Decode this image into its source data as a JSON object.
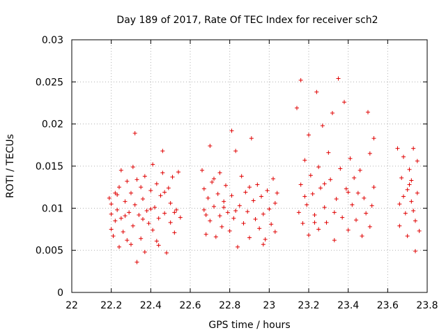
{
  "chart_data": {
    "type": "scatter",
    "title": "Day 189 of 2017, Rate Of TEC Index for receiver sch2",
    "xlabel": "GPS time / hours",
    "ylabel": "ROTI / TECUs",
    "xlim": [
      22,
      23.8
    ],
    "ylim": [
      0,
      0.03
    ],
    "x_ticks": [
      "22",
      "22.2",
      "22.4",
      "22.6",
      "22.8",
      "23",
      "23.2",
      "23.4",
      "23.6",
      "23.8"
    ],
    "y_ticks": [
      "0",
      "0.005",
      "0.01",
      "0.015",
      "0.02",
      "0.025",
      "0.03"
    ],
    "grid": true,
    "marker": "plus",
    "color": "#e00000",
    "points": [
      [
        22.19,
        0.0112
      ],
      [
        22.2,
        0.0105
      ],
      [
        22.2,
        0.0093
      ],
      [
        22.21,
        0.0067
      ],
      [
        22.22,
        0.0085
      ],
      [
        22.22,
        0.0118
      ],
      [
        22.23,
        0.0098
      ],
      [
        22.24,
        0.0054
      ],
      [
        22.24,
        0.0125
      ],
      [
        22.25,
        0.0145
      ],
      [
        22.25,
        0.0088
      ],
      [
        22.26,
        0.0072
      ],
      [
        22.27,
        0.0108
      ],
      [
        22.28,
        0.0132
      ],
      [
        22.28,
        0.0062
      ],
      [
        22.29,
        0.0095
      ],
      [
        22.3,
        0.0118
      ],
      [
        22.31,
        0.0149
      ],
      [
        22.31,
        0.0079
      ],
      [
        22.32,
        0.0104
      ],
      [
        22.32,
        0.0189
      ],
      [
        22.33,
        0.0036
      ],
      [
        22.34,
        0.0092
      ],
      [
        22.35,
        0.0125
      ],
      [
        22.35,
        0.0064
      ],
      [
        22.36,
        0.0111
      ],
      [
        22.37,
        0.0138
      ],
      [
        22.37,
        0.0048
      ],
      [
        22.38,
        0.0097
      ],
      [
        22.39,
        0.0082
      ],
      [
        22.4,
        0.0121
      ],
      [
        22.41,
        0.0152
      ],
      [
        22.41,
        0.0074
      ],
      [
        22.42,
        0.0101
      ],
      [
        22.43,
        0.0129
      ],
      [
        22.44,
        0.0088
      ],
      [
        22.44,
        0.0056
      ],
      [
        22.45,
        0.0115
      ],
      [
        22.46,
        0.0142
      ],
      [
        22.46,
        0.0168
      ],
      [
        22.47,
        0.0094
      ],
      [
        22.48,
        0.0047
      ],
      [
        22.49,
        0.0124
      ],
      [
        22.5,
        0.0083
      ],
      [
        22.5,
        0.0106
      ],
      [
        22.51,
        0.0137
      ],
      [
        22.52,
        0.0071
      ],
      [
        22.53,
        0.0098
      ],
      [
        22.54,
        0.0143
      ],
      [
        22.55,
        0.0089
      ],
      [
        22.2,
        0.0075
      ],
      [
        22.23,
        0.0116
      ],
      [
        22.27,
        0.0091
      ],
      [
        22.3,
        0.0057
      ],
      [
        22.33,
        0.0134
      ],
      [
        22.36,
        0.0087
      ],
      [
        22.4,
        0.0099
      ],
      [
        22.43,
        0.0061
      ],
      [
        22.47,
        0.0119
      ],
      [
        22.52,
        0.0095
      ],
      [
        22.66,
        0.0145
      ],
      [
        22.67,
        0.0098
      ],
      [
        22.67,
        0.0123
      ],
      [
        22.68,
        0.0069
      ],
      [
        22.69,
        0.0112
      ],
      [
        22.7,
        0.0174
      ],
      [
        22.7,
        0.0085
      ],
      [
        22.71,
        0.0131
      ],
      [
        22.72,
        0.0102
      ],
      [
        22.73,
        0.0066
      ],
      [
        22.74,
        0.0117
      ],
      [
        22.75,
        0.0142
      ],
      [
        22.75,
        0.0091
      ],
      [
        22.76,
        0.0078
      ],
      [
        22.77,
        0.0108
      ],
      [
        22.78,
        0.0127
      ],
      [
        22.79,
        0.0095
      ],
      [
        22.8,
        0.0073
      ],
      [
        22.81,
        0.0192
      ],
      [
        22.81,
        0.0115
      ],
      [
        22.82,
        0.0088
      ],
      [
        22.83,
        0.0168
      ],
      [
        22.84,
        0.0054
      ],
      [
        22.85,
        0.0103
      ],
      [
        22.86,
        0.0138
      ],
      [
        22.87,
        0.0082
      ],
      [
        22.88,
        0.0119
      ],
      [
        22.89,
        0.0096
      ],
      [
        22.9,
        0.0065
      ],
      [
        22.91,
        0.0183
      ],
      [
        22.92,
        0.0109
      ],
      [
        22.93,
        0.0087
      ],
      [
        22.94,
        0.0128
      ],
      [
        22.95,
        0.0076
      ],
      [
        22.96,
        0.0114
      ],
      [
        22.97,
        0.0093
      ],
      [
        22.98,
        0.0063
      ],
      [
        22.99,
        0.0121
      ],
      [
        23.0,
        0.0099
      ],
      [
        23.01,
        0.0081
      ],
      [
        23.02,
        0.0135
      ],
      [
        23.03,
        0.0106
      ],
      [
        23.03,
        0.0072
      ],
      [
        23.04,
        0.0118
      ],
      [
        22.68,
        0.0092
      ],
      [
        22.72,
        0.0135
      ],
      [
        22.77,
        0.0101
      ],
      [
        22.83,
        0.0097
      ],
      [
        22.9,
        0.0125
      ],
      [
        22.97,
        0.0057
      ],
      [
        23.14,
        0.0219
      ],
      [
        23.15,
        0.0095
      ],
      [
        23.16,
        0.0252
      ],
      [
        23.16,
        0.0128
      ],
      [
        23.17,
        0.0082
      ],
      [
        23.18,
        0.0157
      ],
      [
        23.19,
        0.0104
      ],
      [
        23.2,
        0.0187
      ],
      [
        23.2,
        0.0068
      ],
      [
        23.21,
        0.0139
      ],
      [
        23.22,
        0.0117
      ],
      [
        23.23,
        0.0092
      ],
      [
        23.24,
        0.0238
      ],
      [
        23.25,
        0.0149
      ],
      [
        23.25,
        0.0075
      ],
      [
        23.26,
        0.0124
      ],
      [
        23.27,
        0.0198
      ],
      [
        23.28,
        0.0101
      ],
      [
        23.29,
        0.0083
      ],
      [
        23.3,
        0.0166
      ],
      [
        23.31,
        0.0134
      ],
      [
        23.32,
        0.0213
      ],
      [
        23.33,
        0.0062
      ],
      [
        23.34,
        0.0111
      ],
      [
        23.35,
        0.0254
      ],
      [
        23.36,
        0.0147
      ],
      [
        23.37,
        0.0089
      ],
      [
        23.38,
        0.0226
      ],
      [
        23.39,
        0.0123
      ],
      [
        23.4,
        0.0074
      ],
      [
        23.41,
        0.0159
      ],
      [
        23.42,
        0.0104
      ],
      [
        23.43,
        0.0136
      ],
      [
        23.44,
        0.0086
      ],
      [
        23.45,
        0.0118
      ],
      [
        23.46,
        0.0145
      ],
      [
        23.47,
        0.0067
      ],
      [
        23.48,
        0.0112
      ],
      [
        23.49,
        0.0094
      ],
      [
        23.5,
        0.0214
      ],
      [
        23.51,
        0.0165
      ],
      [
        23.51,
        0.0078
      ],
      [
        23.52,
        0.0103
      ],
      [
        23.53,
        0.0183
      ],
      [
        23.53,
        0.0125
      ],
      [
        23.18,
        0.0114
      ],
      [
        23.23,
        0.0083
      ],
      [
        23.28,
        0.0129
      ],
      [
        23.33,
        0.0095
      ],
      [
        23.4,
        0.0119
      ],
      [
        23.65,
        0.0171
      ],
      [
        23.66,
        0.0105
      ],
      [
        23.66,
        0.0079
      ],
      [
        23.67,
        0.0136
      ],
      [
        23.68,
        0.0161
      ],
      [
        23.69,
        0.0094
      ],
      [
        23.7,
        0.0122
      ],
      [
        23.7,
        0.0067
      ],
      [
        23.71,
        0.0146
      ],
      [
        23.72,
        0.0108
      ],
      [
        23.72,
        0.0133
      ],
      [
        23.73,
        0.0171
      ],
      [
        23.74,
        0.0085
      ],
      [
        23.74,
        0.0049
      ],
      [
        23.75,
        0.0118
      ],
      [
        23.75,
        0.0156
      ],
      [
        23.76,
        0.0073
      ],
      [
        23.68,
        0.0114
      ],
      [
        23.71,
        0.0128
      ],
      [
        23.73,
        0.0097
      ]
    ]
  }
}
